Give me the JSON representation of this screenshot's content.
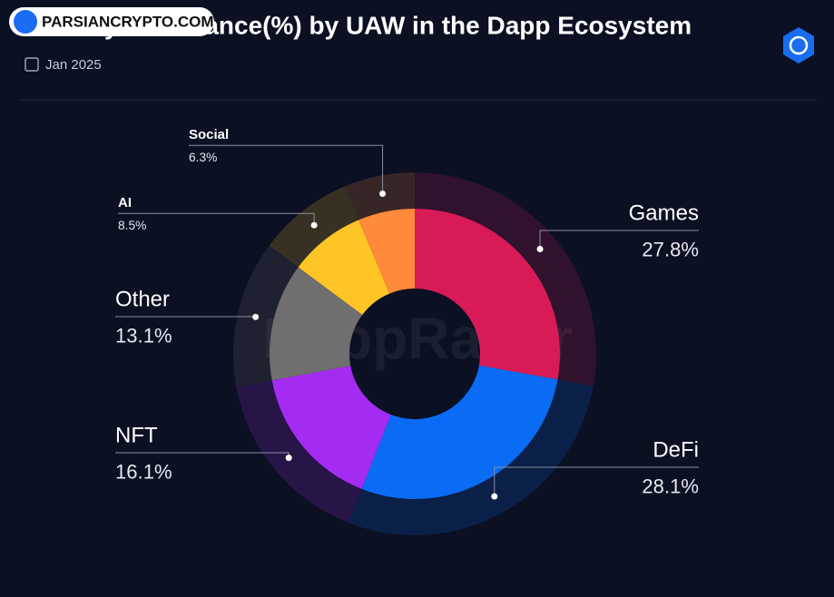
{
  "chart_data": {
    "type": "donut",
    "title": "Industry Dominance(%) by UAW in the Dapp Ecosystem",
    "subtitle": "Jan 2025",
    "watermark": "PARSIANCRYPTO.COM",
    "background_watermark": "DappRadar",
    "categories": [
      "Games",
      "DeFi",
      "NFT",
      "Other",
      "AI",
      "Social"
    ],
    "values": [
      27.8,
      28.1,
      16.1,
      13.1,
      8.5,
      6.3
    ],
    "value_labels": [
      "27.8%",
      "28.1%",
      "16.1%",
      "13.1%",
      "8.5%",
      "6.3%"
    ],
    "colors": [
      "#d81b56",
      "#0a6cf5",
      "#a42cf2",
      "#6f6f6f",
      "#ffc526",
      "#ff8a3a"
    ]
  }
}
